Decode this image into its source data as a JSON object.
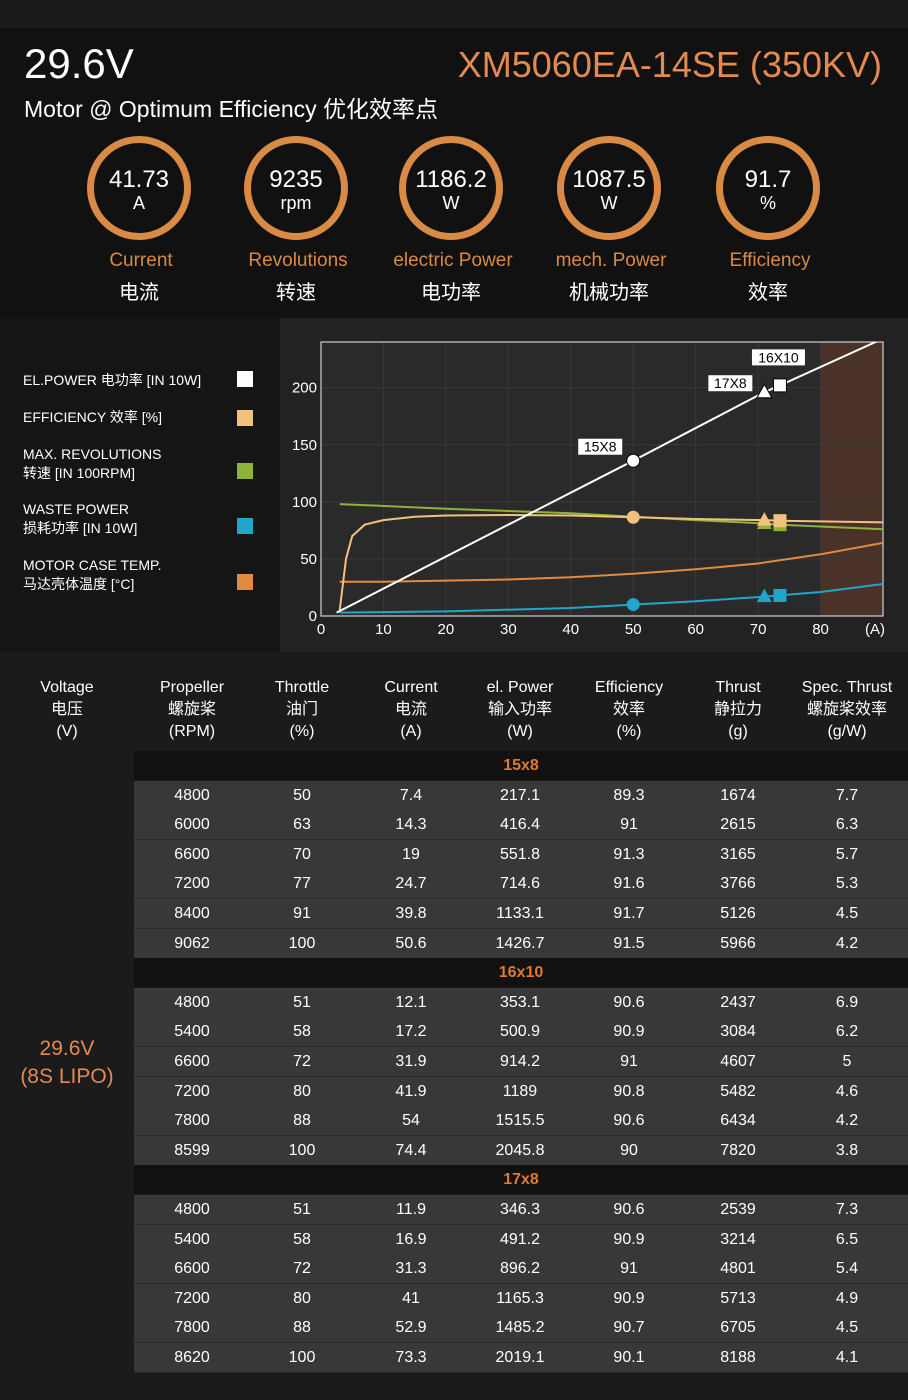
{
  "header": {
    "voltage": "29.6V",
    "model": "XM5060EA-14SE (350KV)",
    "subtitle": "Motor @ Optimum Efficiency  优化效率点"
  },
  "gauges": [
    {
      "value": "41.73",
      "unit": "A",
      "label_en": "Current",
      "label_cn": "电流"
    },
    {
      "value": "9235",
      "unit": "rpm",
      "label_en": "Revolutions",
      "label_cn": "转速"
    },
    {
      "value": "1186.2",
      "unit": "W",
      "label_en": "electric Power",
      "label_cn": "电功率"
    },
    {
      "value": "1087.5",
      "unit": "W",
      "label_en": "mech. Power",
      "label_cn": "机械功率"
    },
    {
      "value": "91.7",
      "unit": "%",
      "label_en": "Efficiency",
      "label_cn": "效率"
    }
  ],
  "legend": [
    {
      "line1": "EL.POWER 电功率 [IN 10W]",
      "line2": "",
      "color": "#ffffff"
    },
    {
      "line1": "EFFICIENCY 效率 [%]",
      "line2": "",
      "color": "#f1c27d"
    },
    {
      "line1": "MAX. REVOLUTIONS",
      "line2": "转速 [IN 100RPM]",
      "color": "#8fb339"
    },
    {
      "line1": "WASTE POWER",
      "line2": "损耗功率 [IN 10W]",
      "color": "#1fa6c9"
    },
    {
      "line1": "MOTOR CASE TEMP.",
      "line2": "马达壳体温度 [°C]",
      "color": "#e28a3d"
    }
  ],
  "chart_data": {
    "type": "line",
    "x_unit_label": "(A)",
    "xlim": [
      0,
      90
    ],
    "ylim": [
      0,
      240
    ],
    "xticks": [
      0,
      10,
      20,
      30,
      40,
      50,
      60,
      70,
      80
    ],
    "yticks": [
      0,
      50,
      100,
      150,
      200
    ],
    "shaded_region_x": [
      80,
      90
    ],
    "series": [
      {
        "key": "el_power",
        "color": "#ffffff",
        "points": [
          [
            2.5,
            3
          ],
          [
            50,
            136
          ],
          [
            71,
            196
          ],
          [
            73.5,
            202
          ],
          [
            90,
            243
          ]
        ]
      },
      {
        "key": "efficiency",
        "color": "#f1c27d",
        "points": [
          [
            3,
            5
          ],
          [
            4,
            50
          ],
          [
            5,
            70
          ],
          [
            7,
            80
          ],
          [
            10,
            84
          ],
          [
            15,
            87
          ],
          [
            20,
            88
          ],
          [
            30,
            88.5
          ],
          [
            40,
            88
          ],
          [
            50,
            86.5
          ],
          [
            60,
            85
          ],
          [
            71,
            84
          ],
          [
            73.5,
            83.5
          ],
          [
            90,
            82
          ]
        ]
      },
      {
        "key": "revolutions",
        "color": "#8fb339",
        "points": [
          [
            3,
            98
          ],
          [
            20,
            94
          ],
          [
            40,
            90
          ],
          [
            50,
            87
          ],
          [
            60,
            84
          ],
          [
            71,
            81
          ],
          [
            73.5,
            80
          ],
          [
            90,
            76
          ]
        ]
      },
      {
        "key": "waste_power",
        "color": "#1fa6c9",
        "points": [
          [
            3,
            3
          ],
          [
            20,
            4
          ],
          [
            40,
            7
          ],
          [
            50,
            10
          ],
          [
            60,
            13
          ],
          [
            71,
            17
          ],
          [
            73.5,
            18
          ],
          [
            80,
            21
          ],
          [
            90,
            28
          ]
        ]
      },
      {
        "key": "case_temp",
        "color": "#e28a3d",
        "points": [
          [
            3,
            30
          ],
          [
            10,
            30
          ],
          [
            20,
            31
          ],
          [
            30,
            32
          ],
          [
            40,
            34
          ],
          [
            50,
            37
          ],
          [
            60,
            41
          ],
          [
            70,
            46
          ],
          [
            80,
            54
          ],
          [
            90,
            64
          ]
        ]
      }
    ],
    "markers": [
      {
        "label": "15X8",
        "x": 50,
        "el_power": 136,
        "efficiency": 86.5,
        "waste_power": 10,
        "shape": "circle"
      },
      {
        "label": "17X8",
        "x": 71,
        "el_power": 196,
        "efficiency": 84,
        "revolutions": 81,
        "waste_power": 17,
        "shape": "triangle"
      },
      {
        "label": "16X10",
        "x": 73.5,
        "el_power": 202,
        "efficiency": 83.5,
        "revolutions": 80,
        "waste_power": 18,
        "shape": "square"
      }
    ]
  },
  "table": {
    "headers": [
      {
        "en": "Voltage",
        "cn": "电压",
        "unit": "(V)"
      },
      {
        "en": "Propeller",
        "cn": "螺旋桨",
        "unit": "(RPM)"
      },
      {
        "en": "Throttle",
        "cn": "油门",
        "unit": "(%)"
      },
      {
        "en": "Current",
        "cn": "电流",
        "unit": "(A)"
      },
      {
        "en": "el. Power",
        "cn": "输入功率",
        "unit": "(W)"
      },
      {
        "en": "Efficiency",
        "cn": "效率",
        "unit": "(%)"
      },
      {
        "en": "Thrust",
        "cn": "静拉力",
        "unit": "(g)"
      },
      {
        "en": "Spec. Thrust",
        "cn": "螺旋桨效率",
        "unit": "(g/W)"
      }
    ],
    "voltage_line1": "29.6V",
    "voltage_line2": "(8S LIPO)",
    "sections": [
      {
        "name": "15x8",
        "rows": [
          [
            "4800",
            "50",
            "7.4",
            "217.1",
            "89.3",
            "1674",
            "7.7"
          ],
          [
            "6000",
            "63",
            "14.3",
            "416.4",
            "91",
            "2615",
            "6.3"
          ],
          [
            "6600",
            "70",
            "19",
            "551.8",
            "91.3",
            "3165",
            "5.7"
          ],
          [
            "7200",
            "77",
            "24.7",
            "714.6",
            "91.6",
            "3766",
            "5.3"
          ],
          [
            "8400",
            "91",
            "39.8",
            "1133.1",
            "91.7",
            "5126",
            "4.5"
          ],
          [
            "9062",
            "100",
            "50.6",
            "1426.7",
            "91.5",
            "5966",
            "4.2"
          ]
        ]
      },
      {
        "name": "16x10",
        "rows": [
          [
            "4800",
            "51",
            "12.1",
            "353.1",
            "90.6",
            "2437",
            "6.9"
          ],
          [
            "5400",
            "58",
            "17.2",
            "500.9",
            "90.9",
            "3084",
            "6.2"
          ],
          [
            "6600",
            "72",
            "31.9",
            "914.2",
            "91",
            "4607",
            "5"
          ],
          [
            "7200",
            "80",
            "41.9",
            "1189",
            "90.8",
            "5482",
            "4.6"
          ],
          [
            "7800",
            "88",
            "54",
            "1515.5",
            "90.6",
            "6434",
            "4.2"
          ],
          [
            "8599",
            "100",
            "74.4",
            "2045.8",
            "90",
            "7820",
            "3.8"
          ]
        ]
      },
      {
        "name": "17x8",
        "rows": [
          [
            "4800",
            "51",
            "11.9",
            "346.3",
            "90.6",
            "2539",
            "7.3"
          ],
          [
            "5400",
            "58",
            "16.9",
            "491.2",
            "90.9",
            "3214",
            "6.5"
          ],
          [
            "6600",
            "72",
            "31.3",
            "896.2",
            "91",
            "4801",
            "5.4"
          ],
          [
            "7200",
            "80",
            "41",
            "1165.3",
            "90.9",
            "5713",
            "4.9"
          ],
          [
            "7800",
            "88",
            "52.9",
            "1485.2",
            "90.7",
            "6705",
            "4.5"
          ],
          [
            "8620",
            "100",
            "73.3",
            "2019.1",
            "90.1",
            "8188",
            "4.1"
          ]
        ]
      }
    ]
  }
}
